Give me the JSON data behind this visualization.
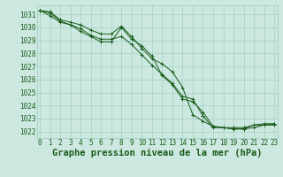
{
  "title": "Graphe pression niveau de la mer (hPa)",
  "x_labels": [
    "0",
    "1",
    "2",
    "3",
    "4",
    "5",
    "6",
    "7",
    "8",
    "9",
    "10",
    "11",
    "12",
    "13",
    "14",
    "15",
    "16",
    "17",
    "18",
    "19",
    "20",
    "21",
    "22",
    "23"
  ],
  "ylim": [
    1021.5,
    1031.7
  ],
  "yticks": [
    1022,
    1023,
    1024,
    1025,
    1026,
    1027,
    1028,
    1029,
    1030,
    1031
  ],
  "series": [
    [
      1031.3,
      1031.2,
      1030.6,
      1030.4,
      1030.2,
      1029.8,
      1029.5,
      1029.5,
      1030.1,
      1029.3,
      1028.4,
      1027.6,
      1027.2,
      1026.6,
      1025.4,
      1023.3,
      1022.8,
      1022.4,
      1022.3,
      1022.2,
      1022.2,
      1022.5,
      1022.6,
      1022.6
    ],
    [
      1031.3,
      1031.1,
      1030.5,
      1030.2,
      1029.9,
      1029.4,
      1029.1,
      1029.1,
      1029.3,
      1028.7,
      1027.9,
      1027.1,
      1026.4,
      1025.7,
      1024.7,
      1024.5,
      1023.2,
      1022.3,
      1022.3,
      1022.2,
      1022.2,
      1022.3,
      1022.5,
      1022.6
    ],
    [
      1031.3,
      1030.9,
      1030.4,
      1030.2,
      1029.7,
      1029.3,
      1028.9,
      1028.9,
      1030.0,
      1029.1,
      1028.6,
      1027.8,
      1026.3,
      1025.6,
      1024.5,
      1024.3,
      1023.5,
      1022.4,
      1022.3,
      1022.3,
      1022.3,
      1022.5,
      1022.5,
      1022.5
    ]
  ],
  "line_color": "#1a5c1a",
  "bg_color": "#cce8e0",
  "grid_color": "#99ccbb",
  "label_color": "#1a5c1a",
  "title_color": "#1a5c1a",
  "title_fontsize": 7.5,
  "tick_fontsize": 5.5
}
